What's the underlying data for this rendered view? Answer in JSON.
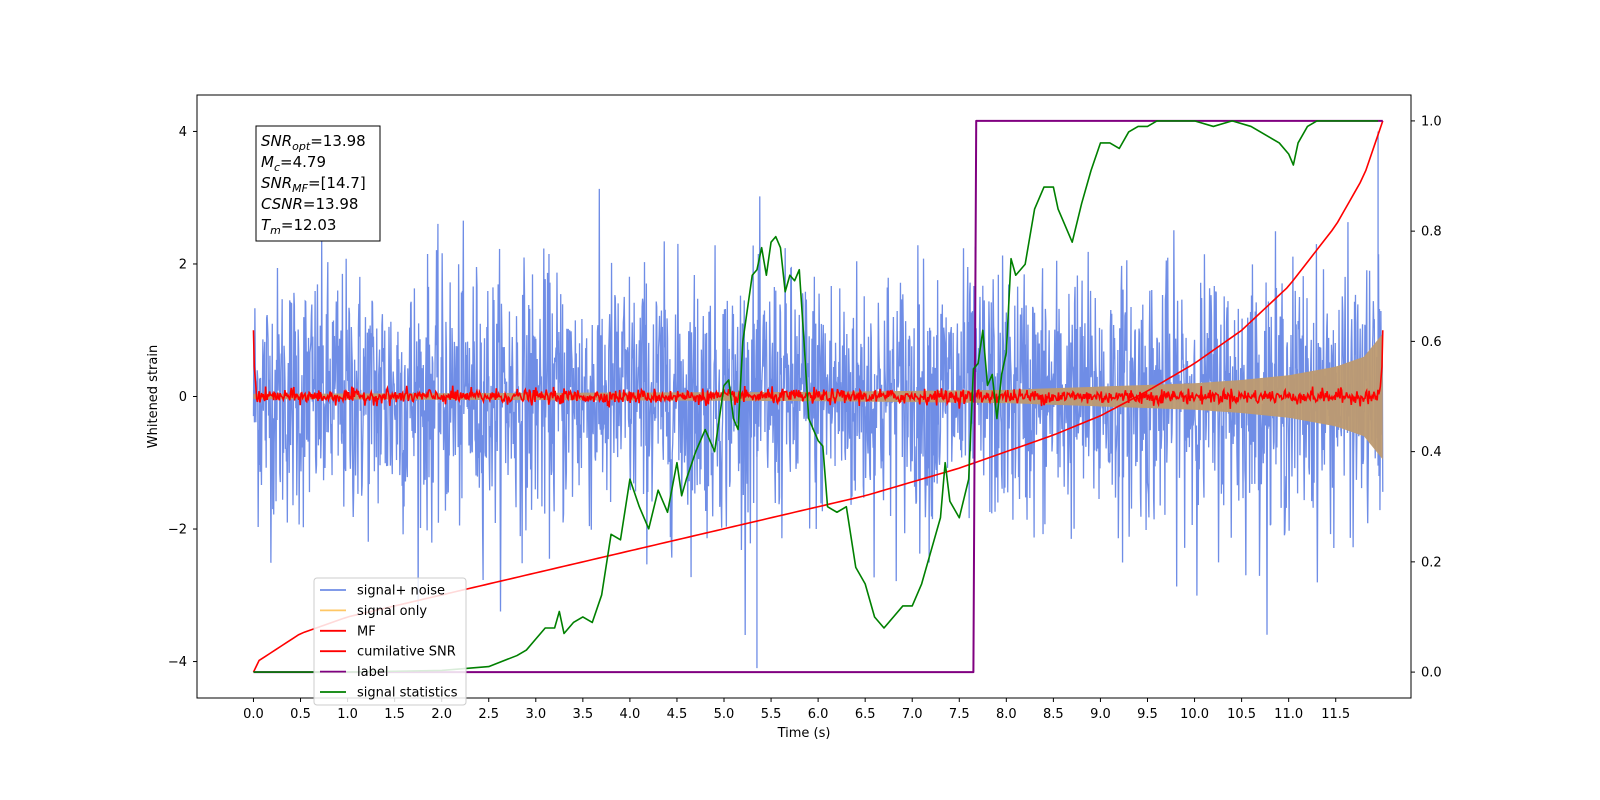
{
  "chart_data": {
    "type": "line",
    "xlabel": "Time (s)",
    "ylabel_left": "Whitened strain",
    "xlim": [
      -0.6,
      12.3
    ],
    "ylim_left": [
      -4.55,
      4.55
    ],
    "ylim_right": [
      -0.047,
      1.047
    ],
    "x_ticks": [
      0.0,
      0.5,
      1.0,
      1.5,
      2.0,
      2.5,
      3.0,
      3.5,
      4.0,
      4.5,
      5.0,
      5.5,
      6.0,
      6.5,
      7.0,
      7.5,
      8.0,
      8.5,
      9.0,
      9.5,
      10.0,
      10.5,
      11.0,
      11.5
    ],
    "x_tick_labels": [
      "0.0",
      "0.5",
      "1.0",
      "1.5",
      "2.0",
      "2.5",
      "3.0",
      "3.5",
      "4.0",
      "4.5",
      "5.0",
      "5.5",
      "6.0",
      "6.5",
      "7.0",
      "7.5",
      "8.0",
      "8.5",
      "9.0",
      "9.5",
      "10.0",
      "10.5",
      "11.0",
      "11.5"
    ],
    "y_ticks_left": [
      -4,
      -2,
      0,
      2,
      4
    ],
    "y_tick_labels_left": [
      "−4",
      "−2",
      "0",
      "2",
      "4"
    ],
    "y_ticks_right": [
      0.0,
      0.2,
      0.4,
      0.6,
      0.8,
      1.0
    ],
    "y_tick_labels_right": [
      "0.0",
      "0.2",
      "0.4",
      "0.6",
      "0.8",
      "1.0"
    ],
    "info_box": [
      {
        "base": "SNR",
        "sub": "opt",
        "rest": "=13.98"
      },
      {
        "base": "M",
        "sub": "c",
        "rest": "=4.79"
      },
      {
        "base": "SNR",
        "sub": "MF",
        "rest": "=[14.7]"
      },
      {
        "base": "CSNR",
        "sub": "",
        "rest": "=13.98"
      },
      {
        "base": "T",
        "sub": "m",
        "rest": "=12.03"
      }
    ],
    "legend": [
      {
        "label": "signal+ noise",
        "color": "#6f8de6"
      },
      {
        "label": "signal only",
        "color": "#ffc765"
      },
      {
        "label": "MF",
        "color": "#ff0000"
      },
      {
        "label": "cumilative SNR",
        "color": "#ff0000"
      },
      {
        "label": "label",
        "color": "#800080"
      },
      {
        "label": "signal statistics",
        "color": "#008000"
      }
    ],
    "series": [
      {
        "name": "signal+ noise",
        "axis": "left",
        "color": "#6f8de6",
        "t_range": [
          0.0,
          12.0
        ],
        "typical_abs_envelope": 2.2,
        "extreme_min": -4.1,
        "extreme_max": 4.0
      },
      {
        "name": "signal only",
        "axis": "left",
        "color": "#ffc765",
        "t_range": [
          0.0,
          12.0
        ],
        "envelope_x": [
          0.0,
          6.0,
          8.0,
          9.0,
          10.0,
          10.5,
          11.0,
          11.5,
          11.8,
          12.0
        ],
        "envelope_y": [
          0.04,
          0.07,
          0.1,
          0.15,
          0.2,
          0.25,
          0.32,
          0.45,
          0.6,
          0.95
        ]
      },
      {
        "name": "MF",
        "axis": "left",
        "color": "#ff0000",
        "t_range": [
          0.0,
          12.0
        ],
        "typical_abs": 0.1,
        "start_value": 1.0,
        "end_value": 1.0
      },
      {
        "name": "cumilative SNR",
        "axis": "right",
        "color": "#ff0000",
        "x": [
          0.0,
          0.05,
          0.5,
          1.0,
          2.0,
          3.0,
          4.0,
          5.0,
          6.0,
          6.5,
          7.0,
          7.5,
          8.0,
          8.5,
          9.0,
          9.5,
          10.0,
          10.5,
          11.0,
          11.5,
          11.8,
          12.0
        ],
        "y": [
          0.0,
          0.02,
          0.07,
          0.1,
          0.14,
          0.18,
          0.22,
          0.26,
          0.3,
          0.32,
          0.345,
          0.37,
          0.4,
          0.43,
          0.465,
          0.51,
          0.56,
          0.62,
          0.7,
          0.81,
          0.9,
          1.0
        ]
      },
      {
        "name": "label",
        "axis": "right",
        "color": "#800080",
        "x": [
          0.0,
          7.65,
          7.68,
          12.0
        ],
        "y": [
          0.0,
          0.0,
          1.0,
          1.0
        ]
      },
      {
        "name": "signal statistics",
        "axis": "right",
        "color": "#008000",
        "x": [
          0.0,
          1.0,
          2.0,
          2.5,
          2.8,
          2.9,
          3.0,
          3.1,
          3.2,
          3.25,
          3.3,
          3.4,
          3.5,
          3.6,
          3.7,
          3.8,
          3.9,
          4.0,
          4.1,
          4.2,
          4.3,
          4.4,
          4.5,
          4.55,
          4.6,
          4.7,
          4.8,
          4.9,
          5.0,
          5.05,
          5.1,
          5.15,
          5.2,
          5.25,
          5.3,
          5.35,
          5.4,
          5.45,
          5.5,
          5.55,
          5.6,
          5.65,
          5.7,
          5.75,
          5.8,
          5.85,
          5.9,
          6.0,
          6.05,
          6.1,
          6.2,
          6.3,
          6.4,
          6.5,
          6.6,
          6.7,
          6.8,
          6.9,
          7.0,
          7.1,
          7.2,
          7.3,
          7.35,
          7.4,
          7.5,
          7.6,
          7.65,
          7.7,
          7.75,
          7.8,
          7.85,
          7.9,
          7.95,
          8.0,
          8.05,
          8.1,
          8.2,
          8.3,
          8.4,
          8.5,
          8.55,
          8.6,
          8.7,
          8.8,
          8.9,
          9.0,
          9.1,
          9.2,
          9.3,
          9.4,
          9.5,
          9.6,
          9.8,
          10.0,
          10.2,
          10.4,
          10.6,
          10.8,
          10.9,
          11.0,
          11.05,
          11.1,
          11.2,
          11.3,
          11.4,
          11.6,
          11.8,
          11.95
        ],
        "y": [
          0.0,
          0.0,
          0.003,
          0.01,
          0.03,
          0.04,
          0.06,
          0.08,
          0.08,
          0.11,
          0.07,
          0.09,
          0.1,
          0.09,
          0.14,
          0.25,
          0.24,
          0.35,
          0.3,
          0.26,
          0.33,
          0.29,
          0.38,
          0.32,
          0.35,
          0.4,
          0.44,
          0.4,
          0.52,
          0.53,
          0.46,
          0.44,
          0.6,
          0.66,
          0.72,
          0.73,
          0.77,
          0.72,
          0.78,
          0.79,
          0.77,
          0.69,
          0.72,
          0.71,
          0.73,
          0.6,
          0.46,
          0.42,
          0.41,
          0.3,
          0.29,
          0.3,
          0.19,
          0.16,
          0.1,
          0.08,
          0.1,
          0.12,
          0.12,
          0.16,
          0.22,
          0.28,
          0.38,
          0.31,
          0.28,
          0.35,
          0.55,
          0.56,
          0.62,
          0.52,
          0.54,
          0.46,
          0.54,
          0.58,
          0.75,
          0.72,
          0.74,
          0.84,
          0.88,
          0.88,
          0.84,
          0.82,
          0.78,
          0.85,
          0.91,
          0.96,
          0.96,
          0.95,
          0.98,
          0.99,
          0.99,
          1.0,
          1.0,
          1.0,
          0.99,
          1.0,
          0.99,
          0.97,
          0.96,
          0.94,
          0.92,
          0.96,
          0.99,
          1.0,
          1.0,
          1.0,
          1.0,
          1.0
        ]
      }
    ]
  }
}
